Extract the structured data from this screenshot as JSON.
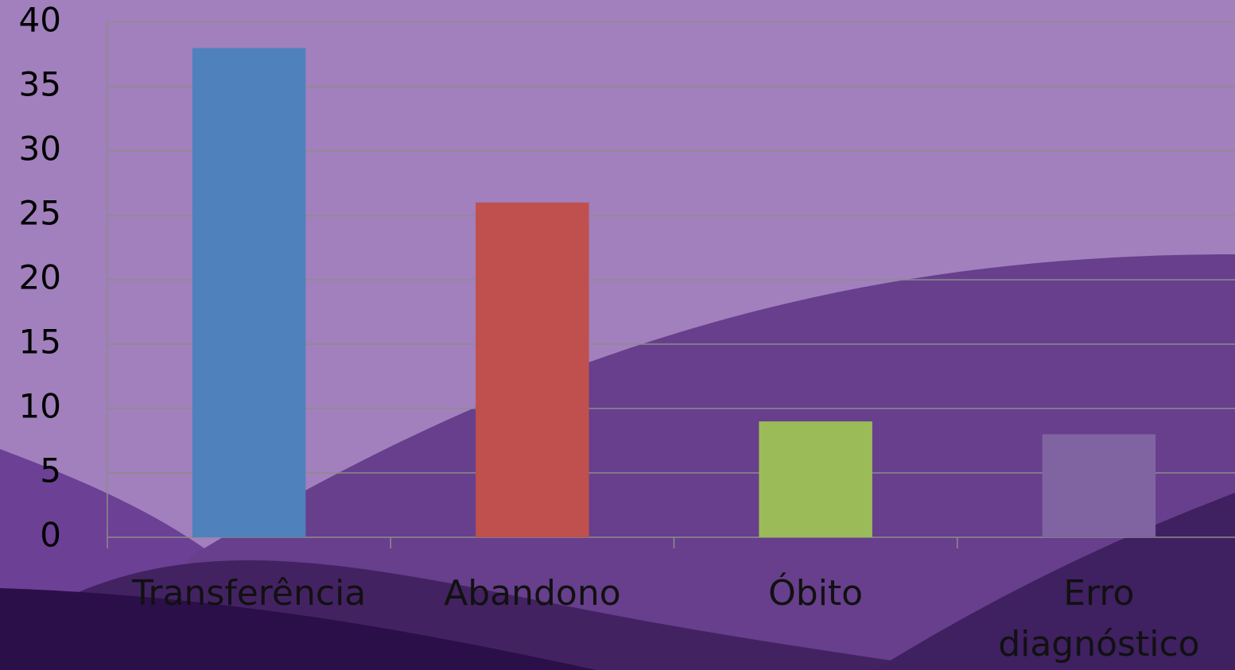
{
  "chart_data": {
    "type": "bar",
    "categories": [
      "Transferência",
      "Abandono",
      "Óbito",
      "Erro diagnóstico"
    ],
    "values": [
      38,
      26,
      9,
      8
    ],
    "colors": [
      "#4f81bd",
      "#c0504d",
      "#9bbb59",
      "#8064a2"
    ],
    "ylim": [
      0,
      40
    ],
    "yticks": [
      0,
      5,
      10,
      15,
      20,
      25,
      30,
      35,
      40
    ],
    "grid": true
  }
}
